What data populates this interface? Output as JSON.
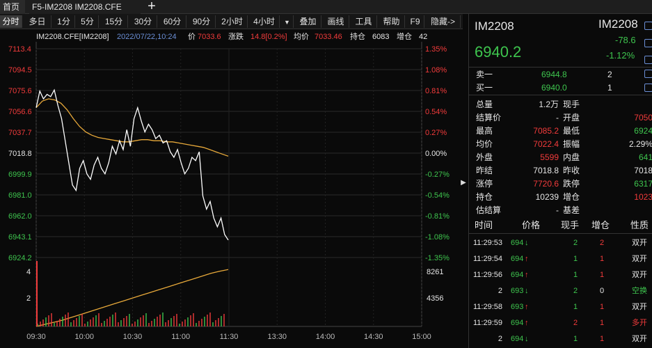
{
  "tabs": {
    "home": "首页",
    "active": "F5-IM2208 IM2208.CFE",
    "add": "+"
  },
  "toolbar": {
    "periods": [
      "分时",
      "多日",
      "1分",
      "5分",
      "15分",
      "30分",
      "60分",
      "90分",
      "2小时",
      "4小时"
    ],
    "active_index": 0,
    "menus": [
      "叠加",
      "画线",
      "工具",
      "帮助",
      "F9",
      "隐藏->"
    ]
  },
  "info": {
    "code": "IM2208.CFE[IM2208]",
    "datetime": "2022/07/22,10:24",
    "price_label": "价",
    "price": "7033.6",
    "change_label": "涨跌",
    "change": "14.8[0.2%]",
    "avg_label": "均价",
    "avg": "7033.46",
    "oi_label": "持仓",
    "oi": "6083",
    "oi_chg_label": "增仓",
    "oi_chg": "42"
  },
  "chart_data": {
    "type": "line",
    "y_left_ticks": [
      "7113.4",
      "7094.5",
      "7075.6",
      "7056.6",
      "7037.7",
      "7018.8",
      "6999.9",
      "6981.0",
      "6962.0",
      "6943.1",
      "6924.2"
    ],
    "y_right_ticks": [
      "1.35%",
      "1.08%",
      "0.81%",
      "0.54%",
      "0.27%",
      "0.00%",
      "-0.27%",
      "-0.54%",
      "-0.81%",
      "-1.08%",
      "-1.35%"
    ],
    "ylim": [
      6924.2,
      7113.4
    ],
    "prev_settle": 7018.8,
    "x_ticks": [
      "09:30",
      "10:00",
      "10:30",
      "11:00",
      "11:30",
      "13:30",
      "14:00",
      "14:30",
      "15:00"
    ],
    "volume_left_ticks": [
      "4",
      "2"
    ],
    "volume_right_ticks": [
      "8261",
      "4356"
    ],
    "series": [
      {
        "values": [
          7060,
          7075,
          7068,
          7072,
          7070,
          7076,
          7062,
          7050,
          7030,
          7010,
          6990,
          6985,
          7005,
          7012,
          7000,
          6995,
          7008,
          7015,
          7005,
          7000,
          7010,
          7025,
          7018,
          7030,
          7022,
          7040,
          7025,
          7050,
          7060,
          7048,
          7038,
          7045,
          7040,
          7032,
          7035,
          7028,
          7030,
          7020,
          7015,
          7022,
          7010,
          7000,
          7005,
          7015,
          7012,
          7020,
          6980,
          6968,
          6975,
          6960,
          6952,
          6960,
          6945,
          6940
        ]
      },
      {
        "values": [
          7060,
          7066,
          7068,
          7067,
          7064,
          7058,
          7050,
          7043,
          7038,
          7035,
          7033,
          7032,
          7031,
          7030,
          7029,
          7029,
          7030,
          7031,
          7031,
          7030,
          7030,
          7029,
          7029,
          7028,
          7027,
          7026,
          7025,
          7024,
          7022,
          7020,
          7018,
          7016
        ]
      },
      {
        "values": [
          0,
          300,
          600,
          900,
          1300,
          1700,
          2100,
          2500,
          2900,
          3300,
          3700,
          4100,
          4500,
          4900,
          5300,
          5700,
          6100,
          6500,
          6900,
          7300,
          7700,
          8000,
          8261
        ]
      }
    ]
  },
  "quote": {
    "symbol": "IM2208",
    "symbol_right": "IM2208",
    "last": "6940.2",
    "change": "-78.6",
    "change_pct": "-1.12%",
    "sell1_label": "卖一",
    "sell1_price": "6944.8",
    "sell1_vol": "2",
    "buy1_label": "买一",
    "buy1_price": "6940.0",
    "buy1_vol": "1",
    "stats": [
      {
        "l1": "总量",
        "v1": "1.2万",
        "c1": "white",
        "l2": "现手",
        "v2": "",
        "c2": "white"
      },
      {
        "l1": "结算价",
        "v1": "-",
        "c1": "white",
        "l2": "开盘",
        "v2": "7050",
        "c2": "red"
      },
      {
        "l1": "最高",
        "v1": "7085.2",
        "c1": "red",
        "l2": "最低",
        "v2": "6924",
        "c2": "green"
      },
      {
        "l1": "均价",
        "v1": "7022.4",
        "c1": "red",
        "l2": "振幅",
        "v2": "2.29%",
        "c2": "white"
      },
      {
        "l1": "外盘",
        "v1": "5599",
        "c1": "red",
        "l2": "内盘",
        "v2": "641",
        "c2": "green"
      },
      {
        "l1": "昨结",
        "v1": "7018.8",
        "c1": "white",
        "l2": "昨收",
        "v2": "7018",
        "c2": "white"
      },
      {
        "l1": "涨停",
        "v1": "7720.6",
        "c1": "red",
        "l2": "跌停",
        "v2": "6317",
        "c2": "green"
      },
      {
        "l1": "持仓",
        "v1": "10239",
        "c1": "white",
        "l2": "增仓",
        "v2": "1023",
        "c2": "red"
      },
      {
        "l1": "估结算",
        "v1": "-",
        "c1": "white",
        "l2": "基差",
        "v2": "",
        "c2": "white"
      }
    ]
  },
  "ticks": {
    "headers": [
      "时间",
      "价格",
      "现手",
      "增仓",
      "性质"
    ],
    "rows": [
      {
        "time": "11:29:53",
        "price": "694",
        "dir": "down",
        "vol": "2",
        "vcol": "green",
        "oi": "2",
        "ocol": "red",
        "type": "双开",
        "tcol": "white"
      },
      {
        "time": "11:29:54",
        "price": "694",
        "dir": "up",
        "vol": "1",
        "vcol": "green",
        "oi": "1",
        "ocol": "red",
        "type": "双开",
        "tcol": "white"
      },
      {
        "time": "11:29:56",
        "price": "694",
        "dir": "up",
        "vol": "1",
        "vcol": "green",
        "oi": "1",
        "ocol": "red",
        "type": "双开",
        "tcol": "white"
      },
      {
        "time": "2",
        "price": "693",
        "dir": "down",
        "vol": "2",
        "vcol": "green",
        "oi": "0",
        "ocol": "white",
        "type": "空换",
        "tcol": "green"
      },
      {
        "time": "11:29:58",
        "price": "693",
        "dir": "up",
        "vol": "1",
        "vcol": "green",
        "oi": "1",
        "ocol": "red",
        "type": "双开",
        "tcol": "white"
      },
      {
        "time": "11:29:59",
        "price": "694",
        "dir": "up",
        "vol": "2",
        "vcol": "red",
        "oi": "1",
        "ocol": "red",
        "type": "多开",
        "tcol": "red"
      },
      {
        "time": "2",
        "price": "694",
        "dir": "down",
        "vol": "1",
        "vcol": "green",
        "oi": "1",
        "ocol": "red",
        "type": "双开",
        "tcol": "white"
      }
    ]
  },
  "colors": {
    "up": "#f23b3b",
    "down": "#3ec54e",
    "price_line": "#ffffff",
    "avg_line": "#e8a93a",
    "bg": "#0a0a0a"
  },
  "icons": {
    "edit": "edit-icon",
    "add": "add-icon",
    "bell": "bell-icon",
    "menu": "menu-icon",
    "close": "close-icon"
  }
}
